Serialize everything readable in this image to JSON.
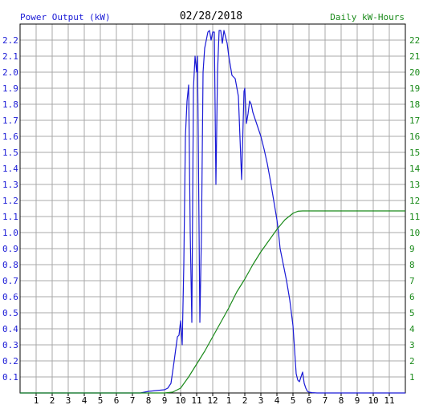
{
  "chart_data": {
    "type": "line",
    "title": "02/28/2018",
    "ylabel_left": "Power Output (kW)",
    "ylabel_right": "Daily kW-Hours",
    "xlabel": "",
    "xlim": [
      0,
      24
    ],
    "ylim_left": [
      0,
      2.3
    ],
    "ylim_right": [
      0,
      23
    ],
    "grid": true,
    "x_tick_labels": [
      "1",
      "2",
      "3",
      "4",
      "5",
      "6",
      "7",
      "8",
      "9",
      "10",
      "11",
      "12",
      "1",
      "2",
      "3",
      "4",
      "5",
      "6",
      "7",
      "8",
      "9",
      "10",
      "11"
    ],
    "y_left_ticks": [
      "0.1",
      "0.2",
      "0.3",
      "0.4",
      "0.5",
      "0.6",
      "0.7",
      "0.8",
      "0.9",
      "1.0",
      "1.1",
      "1.2",
      "1.3",
      "1.4",
      "1.5",
      "1.6",
      "1.7",
      "1.8",
      "1.9",
      "2.0",
      "2.1",
      "2.2"
    ],
    "y_right_ticks": [
      "1",
      "2",
      "3",
      "4",
      "5",
      "6",
      "7",
      "8",
      "9",
      "10",
      "11",
      "12",
      "13",
      "14",
      "15",
      "16",
      "17",
      "18",
      "19",
      "20",
      "21",
      "22"
    ],
    "series": [
      {
        "name": "Power Output (kW)",
        "axis": "left",
        "color": "#1a1ad6",
        "x": [
          0,
          7.5,
          8,
          8.5,
          9,
          9.2,
          9.4,
          9.6,
          9.8,
          9.9,
          10.0,
          10.1,
          10.2,
          10.3,
          10.4,
          10.5,
          10.6,
          10.7,
          10.8,
          10.9,
          11.0,
          11.05,
          11.1,
          11.2,
          11.3,
          11.4,
          11.5,
          11.6,
          11.7,
          11.8,
          11.9,
          12.0,
          12.1,
          12.2,
          12.3,
          12.4,
          12.45,
          12.5,
          12.55,
          12.6,
          12.7,
          12.8,
          12.9,
          13.0,
          13.2,
          13.4,
          13.6,
          13.8,
          13.95,
          14.0,
          14.1,
          14.2,
          14.3,
          14.4,
          14.5,
          14.6,
          14.8,
          15.0,
          15.2,
          15.4,
          15.6,
          15.8,
          16.0,
          16.1,
          16.2,
          16.4,
          16.6,
          16.8,
          17.0,
          17.2,
          17.3,
          17.4,
          17.5,
          17.6,
          17.7,
          17.8,
          17.9,
          18.0,
          18.2,
          18.5,
          19,
          24
        ],
        "y": [
          0,
          0,
          0.01,
          0.015,
          0.02,
          0.03,
          0.06,
          0.2,
          0.35,
          0.36,
          0.45,
          0.3,
          0.8,
          1.6,
          1.82,
          1.92,
          1.0,
          0.44,
          1.9,
          2.1,
          2.0,
          2.1,
          1.6,
          0.44,
          1.0,
          2.0,
          2.15,
          2.2,
          2.25,
          2.26,
          2.2,
          2.25,
          2.25,
          1.3,
          2.0,
          2.26,
          2.26,
          2.26,
          2.22,
          2.18,
          2.26,
          2.22,
          2.18,
          2.1,
          1.98,
          1.96,
          1.85,
          1.33,
          1.88,
          1.9,
          1.68,
          1.74,
          1.82,
          1.8,
          1.75,
          1.72,
          1.66,
          1.6,
          1.52,
          1.43,
          1.32,
          1.2,
          1.08,
          1.0,
          0.9,
          0.8,
          0.7,
          0.58,
          0.42,
          0.12,
          0.08,
          0.07,
          0.1,
          0.13,
          0.06,
          0.03,
          0.01,
          0.005,
          0.002,
          0,
          0,
          0
        ]
      },
      {
        "name": "Daily kW-Hours",
        "axis": "right",
        "color": "#1a8a1a",
        "x": [
          0,
          9.0,
          9.5,
          10.0,
          10.5,
          11.0,
          11.5,
          12.0,
          12.5,
          13.0,
          13.5,
          14.0,
          14.5,
          15.0,
          15.5,
          16.0,
          16.5,
          17.0,
          17.3,
          17.6,
          18.0,
          19.0,
          24
        ],
        "y": [
          0,
          0,
          0.05,
          0.3,
          1.0,
          1.8,
          2.6,
          3.5,
          4.4,
          5.3,
          6.3,
          7.1,
          8.0,
          8.8,
          9.5,
          10.2,
          10.8,
          11.2,
          11.33,
          11.35,
          11.35,
          11.35,
          11.35
        ]
      }
    ]
  }
}
